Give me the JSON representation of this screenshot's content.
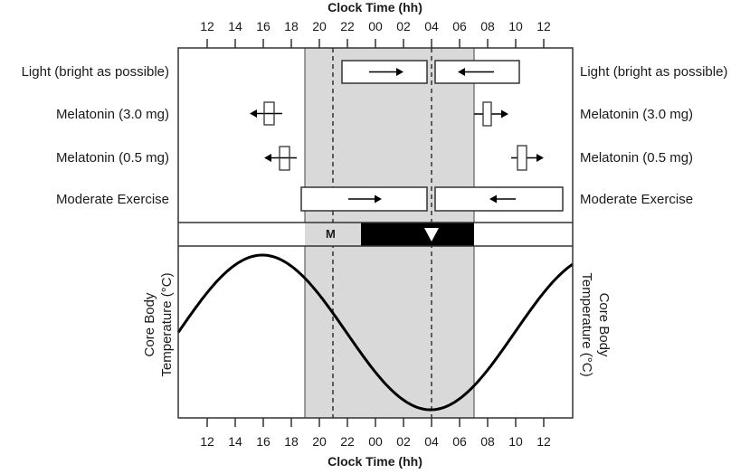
{
  "chart_data": {
    "type": "diagram",
    "title": "",
    "top_xlabel": "Clock Time (hh)",
    "bottom_xlabel": "Clock Time (hh)",
    "ylabel_left": "Core Body Temperature (°C)",
    "ylabel_right": "Core Body Temperature (°C)",
    "x_ticks": [
      "12",
      "14",
      "16",
      "18",
      "20",
      "22",
      "00",
      "02",
      "04",
      "06",
      "08",
      "10",
      "12"
    ],
    "x_range_hours": [
      10,
      38
    ],
    "shaded_sleep_period": {
      "start": "19:00",
      "end": "07:00",
      "color": "#d9d9d9"
    },
    "dashed_markers": [
      {
        "time": "21:00",
        "meaning": "melatonin onset"
      },
      {
        "time": "04:00",
        "meaning": "core body temperature minimum"
      }
    ],
    "sleep_band": {
      "melatonin_label": "M",
      "m_segment": {
        "start": "19:00",
        "end": "23:00",
        "color": "#d9d9d9"
      },
      "sleep_segment": {
        "start": "23:00",
        "end": "07:00",
        "color": "#000000"
      },
      "marker": {
        "type": "down-triangle",
        "time": "04:00"
      }
    },
    "rows": [
      {
        "label": "Light (bright as possible)",
        "before_min": {
          "start": "21:30",
          "end": "03:30",
          "arrow": "right"
        },
        "after_min": {
          "start": "04:30",
          "end": "10:30",
          "arrow": "left"
        }
      },
      {
        "label": "Melatonin (3.0 mg)",
        "before_min": {
          "center": "16:30",
          "arrow": "left"
        },
        "after_min": {
          "center": "08:30",
          "arrow": "right"
        }
      },
      {
        "label": "Melatonin (0.5 mg)",
        "before_min": {
          "center": "17:30",
          "arrow": "left"
        },
        "after_min": {
          "center": "10:30",
          "arrow": "right"
        }
      },
      {
        "label": "Moderate Exercise",
        "before_min": {
          "start": "18:45",
          "end": "03:30",
          "arrow": "right"
        },
        "after_min": {
          "start": "04:30",
          "end": "13:30",
          "arrow": "left"
        }
      }
    ],
    "temperature_curve": {
      "shape": "sinusoid",
      "period_hours": 24,
      "peak_time": "16:00",
      "trough_time": "04:00"
    }
  },
  "labels": {
    "top_title": "Clock Time (hh)",
    "bottom_title": "Clock Time (hh)",
    "rows": [
      "Light (bright as possible)",
      "Melatonin (3.0 mg)",
      "Melatonin (0.5 mg)",
      "Moderate Exercise"
    ],
    "band_m": "M",
    "ylabel_line1": "Core Body",
    "ylabel_line2": "Temperature (°C)",
    "ticks": [
      "12",
      "14",
      "16",
      "18",
      "20",
      "22",
      "00",
      "02",
      "04",
      "06",
      "08",
      "10",
      "12"
    ]
  },
  "colors": {
    "shade": "#d9d9d9",
    "line": "#000000",
    "box_fill": "#ffffff"
  }
}
